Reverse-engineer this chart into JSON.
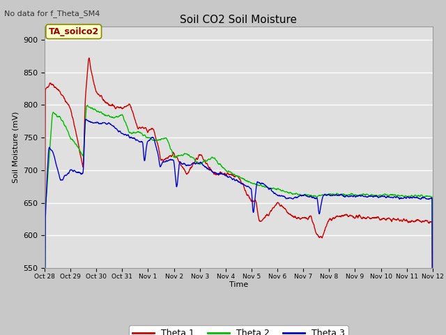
{
  "title": "Soil CO2 Soil Moisture",
  "ylabel": "Soil Moisture (mV)",
  "xlabel": "Time",
  "subtitle": "No data for f_Theta_SM4",
  "annotation": "TA_soilco2",
  "ylim": [
    550,
    920
  ],
  "yticks": [
    550,
    600,
    650,
    700,
    750,
    800,
    850,
    900
  ],
  "fig_facecolor": "#c8c8c8",
  "ax_facecolor": "#e0e0e0",
  "grid_color": "#ffffff",
  "line_colors": {
    "theta1": "#cc0000",
    "theta2": "#00bb00",
    "theta3": "#0000cc"
  },
  "legend_labels": [
    "Theta 1",
    "Theta 2",
    "Theta 3"
  ],
  "x_tick_labels": [
    "Oct 28",
    "Oct 29",
    "Oct 30",
    "Oct 31",
    "Nov 1",
    "Nov 2",
    "Nov 3",
    "Nov 4",
    "Nov 5",
    "Nov 6",
    "Nov 7",
    "Nov 8",
    "Nov 9",
    "Nov 10",
    "Nov 11",
    "Nov 12"
  ]
}
